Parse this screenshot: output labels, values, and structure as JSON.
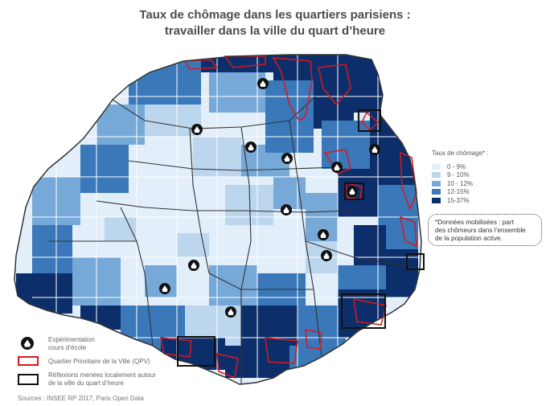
{
  "title": {
    "line1": "Taux de chômage dans les quartiers parisiens :",
    "line2": "travailler dans la ville du quart d’heure"
  },
  "legend": {
    "title": "Taux de chômage* :",
    "classes": [
      {
        "label": "0 - 9%",
        "color": "#e2eef9"
      },
      {
        "label": "9 - 10%",
        "color": "#bcd6ee"
      },
      {
        "label": "10 - 12%",
        "color": "#76a9d8"
      },
      {
        "label": "12-15%",
        "color": "#3a78b9"
      },
      {
        "label": "15-37%",
        "color": "#0c2f6b"
      }
    ]
  },
  "note": {
    "line1": "*Données mobilisées : part",
    "line2": "des chômeurs dans l’ensemble",
    "line3": "de la population active."
  },
  "bottom_legend": {
    "school_line1": "Expérimentation",
    "school_line2": "cours d’école",
    "school_icon": "school-icon",
    "qpv": "Quartier Prioritaire de la Ville (QPV)",
    "qpv_color": "#d7191c",
    "reflexion_line1": "Réflexions menées localement autour",
    "reflexion_line2": "de la ville du quart d’heure"
  },
  "source": "Sources : INSEE RP 2017, Paris Open Data",
  "colors": {
    "border": "#333333",
    "qpv": "#d7191c"
  }
}
